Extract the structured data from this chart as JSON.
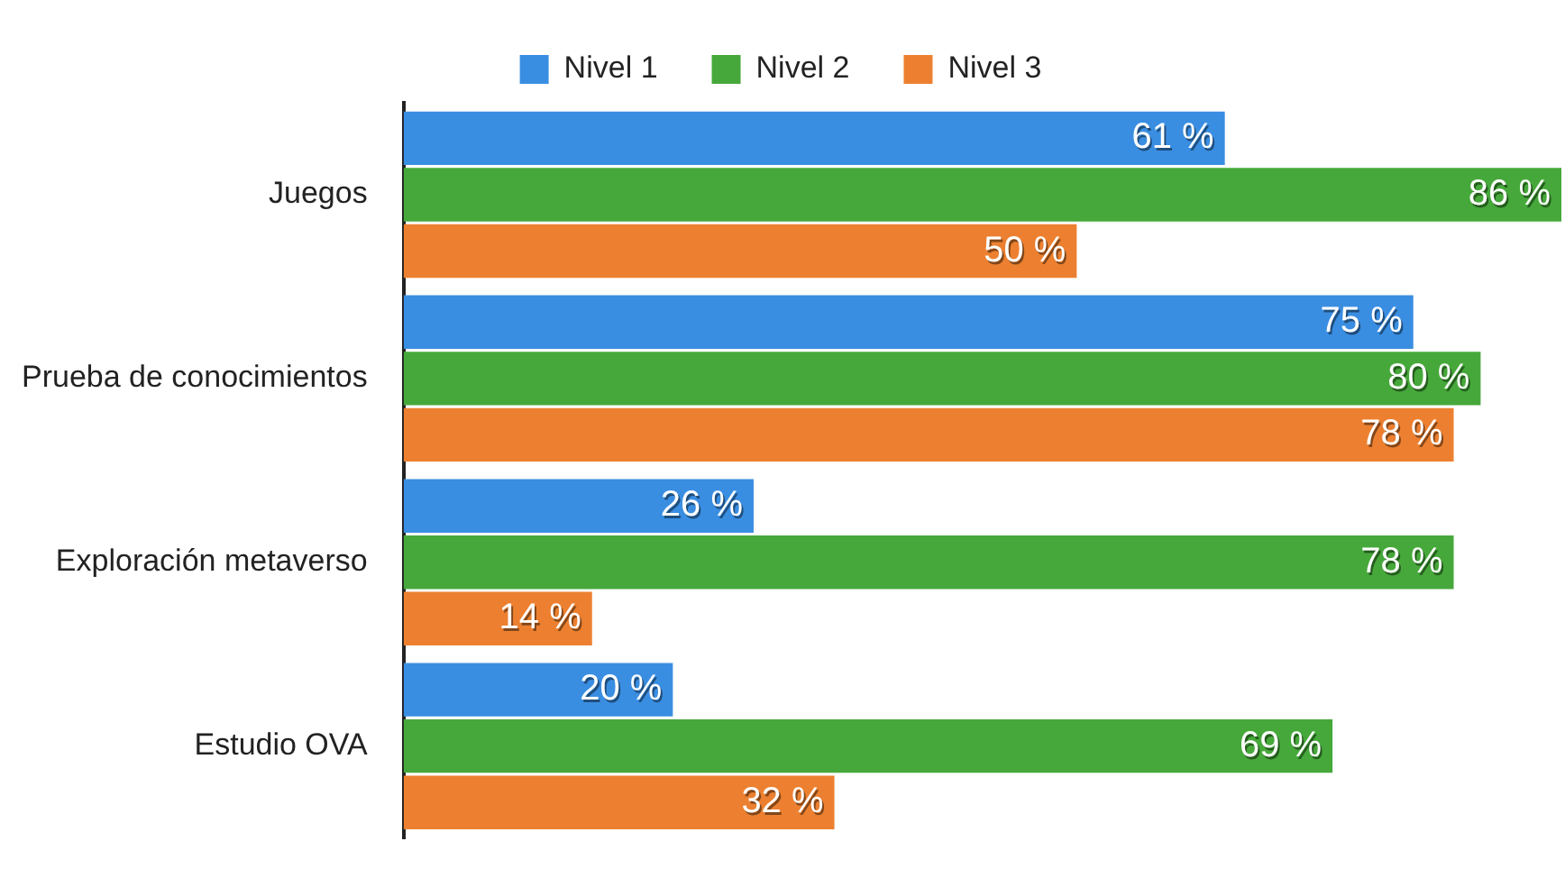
{
  "chart_data": {
    "type": "bar",
    "orientation": "horizontal",
    "categories": [
      "Juegos",
      "Prueba de conocimientos",
      "Exploración metaverso",
      "Estudio OVA"
    ],
    "series": [
      {
        "name": "Nivel 1",
        "color": "#3a8ee2",
        "values": [
          61,
          75,
          26,
          20
        ],
        "value_labels": [
          "61 %",
          "75 %",
          "26 %",
          "20 %"
        ]
      },
      {
        "name": "Nivel 2",
        "color": "#46a83a",
        "values": [
          86,
          80,
          78,
          69
        ],
        "value_labels": [
          "86 %",
          "80 %",
          "78 %",
          "69 %"
        ]
      },
      {
        "name": "Nivel 3",
        "color": "#ec8030",
        "values": [
          50,
          78,
          14,
          32
        ],
        "value_labels": [
          "50 %",
          "78 %",
          "14 %",
          "32 %"
        ]
      }
    ],
    "legend": "top",
    "tick_labels": "y"
  }
}
